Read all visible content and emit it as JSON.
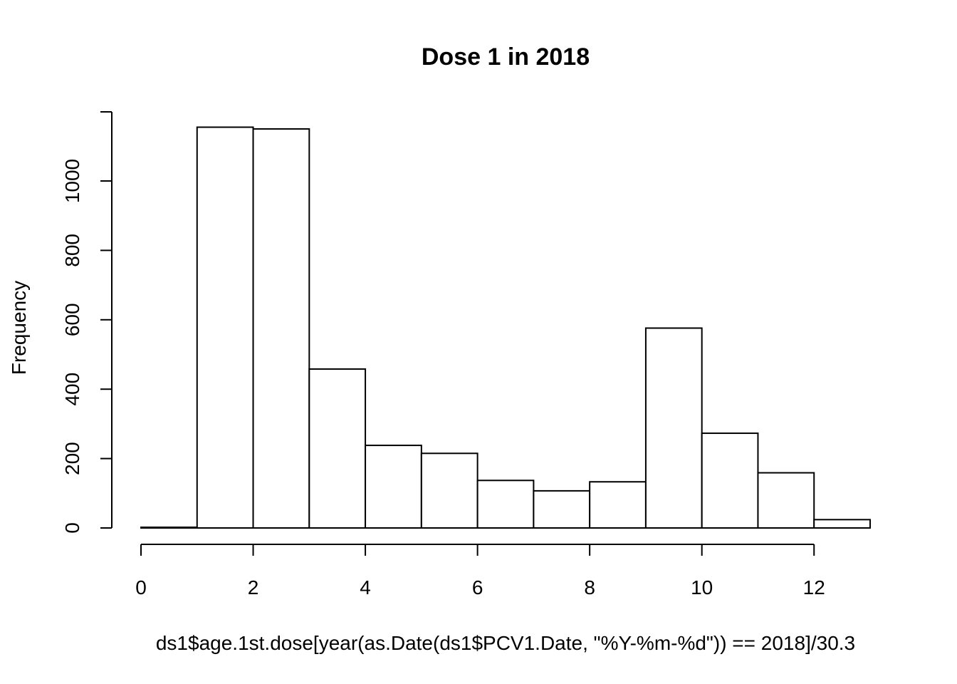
{
  "chart_data": {
    "type": "bar",
    "title": "Dose 1 in 2018",
    "xlabel": "ds1$age.1st.dose[year(as.Date(ds1$PCV1.Date, \"%Y-%m-%d\")) == 2018]/30.3",
    "ylabel": "Frequency",
    "bin_edges": [
      0,
      1,
      2,
      3,
      4,
      5,
      6,
      7,
      8,
      9,
      10,
      11,
      12,
      13
    ],
    "values": [
      2,
      1155,
      1150,
      458,
      238,
      215,
      137,
      107,
      133,
      576,
      273,
      159,
      24
    ],
    "xlim": [
      0,
      13
    ],
    "ylim": [
      0,
      1200
    ],
    "x_ticks": [
      0,
      2,
      4,
      6,
      8,
      10,
      12
    ],
    "y_ticks": [
      0,
      200,
      400,
      600,
      800,
      1000
    ],
    "x_tick_labels": [
      "0",
      "2",
      "4",
      "6",
      "8",
      "10",
      "12"
    ],
    "y_tick_labels": [
      "0",
      "200",
      "400",
      "600",
      "800",
      "1000"
    ],
    "grid": false,
    "legend": "none",
    "bar_fill": "#ffffff",
    "bar_stroke": "#000000"
  }
}
